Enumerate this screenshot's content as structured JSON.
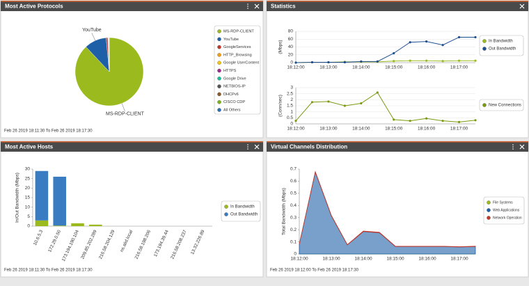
{
  "panels": [
    {
      "title": "Most Active Protocols",
      "footer": "Feb 26 2019 18:11:30 To Feb 26 2019 18:17:30"
    },
    {
      "title": "Statistics"
    },
    {
      "title": "Most Active Hosts",
      "footer": "Feb 26 2019 18:11:30 To Feb 26 2019 18:17:30"
    },
    {
      "title": "Virtual Channels Distribution",
      "footer": "Feb 26 2019 18:12:00 To Feb 26 2019 18:17:30"
    }
  ],
  "chart_data": [
    {
      "type": "pie",
      "categories": [
        "MS-RDP-CLIENT",
        "YouTube",
        "GoogleServices",
        "HTTP_Browsing",
        "Google UserContent",
        "HTTPS",
        "Google Drive",
        "NETBIOS-IP",
        "DHCPv6",
        "CISCO CDP",
        "All Others"
      ],
      "values": [
        88,
        10.5,
        0.8,
        0.1,
        0.1,
        0.1,
        0.1,
        0.1,
        0.1,
        0.05,
        0.05
      ],
      "colors": [
        "#9aba1e",
        "#1f5fa8",
        "#c0392b",
        "#f39c12",
        "#f1c40f",
        "#9b2a8c",
        "#1abc9c",
        "#555555",
        "#8b5a2b",
        "#7ab317",
        "#2c6fb7"
      ]
    },
    {
      "type": "line",
      "ylabel": "(Mbps)",
      "categories": [
        "18:12:00",
        null,
        "18:13:00",
        null,
        "18:14:00",
        null,
        "18:15:00",
        null,
        "18:16:00",
        null,
        "18:17:00",
        null
      ],
      "series": [
        {
          "name": "In Bandwidth",
          "color": "#9aba1e",
          "values": [
            0,
            1,
            1,
            2,
            2,
            2,
            4,
            5,
            5,
            4,
            5,
            5
          ]
        },
        {
          "name": "Out Bandwidth",
          "color": "#1f4f8f",
          "values": [
            0,
            1,
            1,
            1,
            3,
            3,
            24,
            52,
            54,
            45,
            65,
            65
          ]
        }
      ],
      "ylim": [
        0,
        80
      ],
      "yticks": [
        0,
        20,
        40,
        60,
        80
      ],
      "grid": true
    },
    {
      "type": "line",
      "ylabel": "(Conn/sec)",
      "categories": [
        "18:12:00",
        null,
        "18:13:00",
        null,
        "18:14:00",
        null,
        "18:15:00",
        null,
        "18:16:00",
        null,
        "18:17:00",
        null
      ],
      "series": [
        {
          "name": "New Connections",
          "color": "#7a9a10",
          "values": [
            0.25,
            1.8,
            1.85,
            1.5,
            1.7,
            2.6,
            0.35,
            0.25,
            0.45,
            0.25,
            0.15,
            0.3
          ]
        }
      ],
      "ylim": [
        0,
        3
      ],
      "yticks": [
        0,
        0.5,
        1,
        1.5,
        2,
        2.5,
        3
      ],
      "grid": true
    },
    {
      "type": "stacked_bar",
      "ylabel": "In/Out Bandwidth (Mbps)",
      "categories": [
        "10.6.5.3",
        "172.29.0.50",
        "173.194.190.104",
        "209.85.202.289",
        "216.58.204.129",
        "ns.alid.local",
        "216.58.198.206",
        "173.194.39.44",
        "216.58.208.237",
        "13.32.226.89"
      ],
      "series": [
        {
          "name": "In Bandwidth",
          "color": "#9aba1e",
          "values": [
            3,
            0.3,
            1.5,
            0.8,
            0,
            0,
            0,
            0,
            0,
            0
          ]
        },
        {
          "name": "Out Bandwidth",
          "color": "#3a7cc2",
          "values": [
            26,
            25.7,
            0,
            0,
            0,
            0,
            0,
            0,
            0,
            0
          ]
        }
      ],
      "ylim": [
        0,
        30
      ],
      "yticks": [
        0,
        5,
        10,
        15,
        20,
        25,
        30
      ],
      "grid": false
    },
    {
      "type": "stacked_area",
      "ylabel": "Total Bandwidth (Mbps)",
      "categories": [
        "18:12:00",
        null,
        "18:13:00",
        null,
        "18:14:00",
        null,
        "18:15:00",
        null,
        "18:16:00",
        null,
        "18:17:00",
        null
      ],
      "series": [
        {
          "name": "File Systems",
          "color": "#9aba1e",
          "values": [
            0,
            0,
            0,
            0,
            0,
            0,
            0,
            0,
            0,
            0,
            0,
            0
          ]
        },
        {
          "name": "Web Applications",
          "color": "#1f5fa8",
          "values": [
            0.08,
            0.675,
            0.315,
            0.075,
            0.185,
            0.175,
            0.062,
            0.062,
            0.062,
            0.062,
            0.058,
            0.062
          ]
        },
        {
          "name": "Network Operation",
          "color": "#c0392b",
          "values": [
            0.002,
            0.004,
            0.004,
            0.002,
            0.004,
            0.004,
            0.002,
            0.002,
            0.002,
            0.002,
            0.002,
            0.002
          ]
        }
      ],
      "ylim": [
        0,
        0.7
      ],
      "yticks": [
        0,
        0.1,
        0.2,
        0.3,
        0.4,
        0.5,
        0.6,
        0.7
      ],
      "grid": false
    }
  ]
}
